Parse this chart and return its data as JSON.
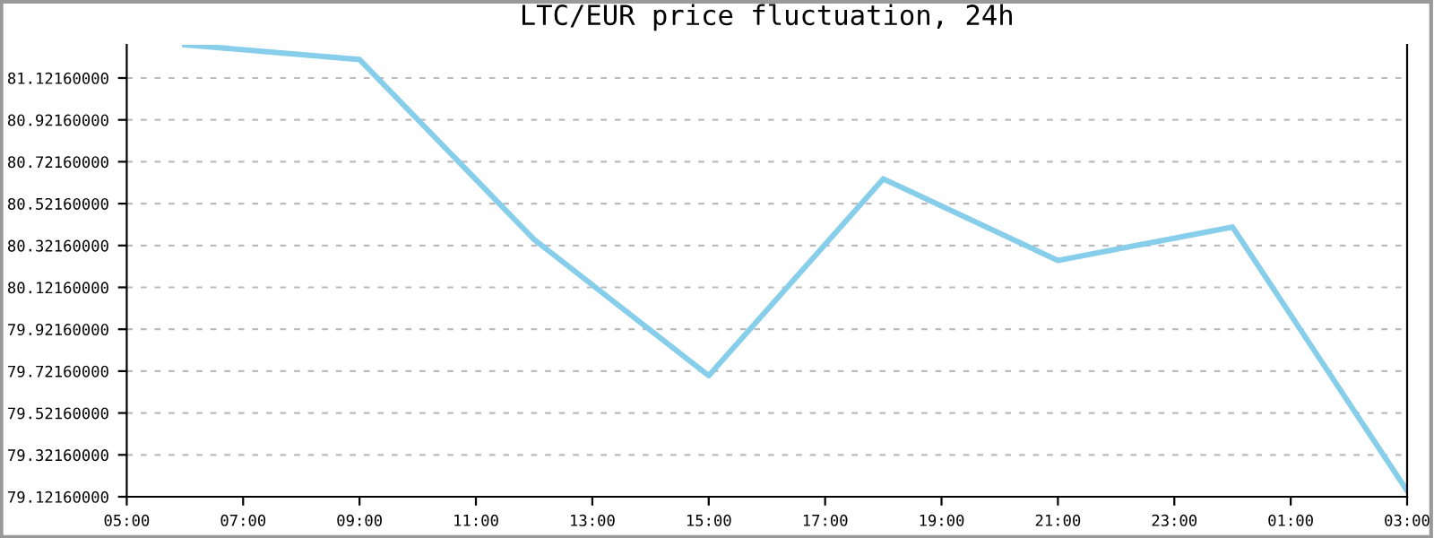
{
  "chart_data": {
    "type": "line",
    "title": "LTC/EUR price fluctuation, 24h",
    "x": [
      "2000-01-01T06:00",
      "2000-01-01T09:00",
      "2000-01-01T12:00",
      "2000-01-01T15:00",
      "2000-01-01T18:00",
      "2000-01-01T21:00",
      "2000-01-02T00:00",
      "2000-01-02T03:00"
    ],
    "series": [
      {
        "color": "#87ceeb",
        "values": [
          81.28,
          81.21,
          80.35,
          79.7,
          80.64,
          80.25,
          80.41,
          79.15
        ]
      }
    ],
    "xlim": [
      "2000-01-01T05:00",
      "2000-01-02T03:00"
    ],
    "xticks": [
      {
        "value": "2000-01-01T05:00",
        "label": "05:00"
      },
      {
        "value": "2000-01-01T07:00",
        "label": "07:00"
      },
      {
        "value": "2000-01-01T09:00",
        "label": "09:00"
      },
      {
        "value": "2000-01-01T11:00",
        "label": "11:00"
      },
      {
        "value": "2000-01-01T13:00",
        "label": "13:00"
      },
      {
        "value": "2000-01-01T15:00",
        "label": "15:00"
      },
      {
        "value": "2000-01-01T17:00",
        "label": "17:00"
      },
      {
        "value": "2000-01-01T19:00",
        "label": "19:00"
      },
      {
        "value": "2000-01-01T21:00",
        "label": "21:00"
      },
      {
        "value": "2000-01-01T23:00",
        "label": "23:00"
      },
      {
        "value": "2000-01-02T01:00",
        "label": "01:00"
      },
      {
        "value": "2000-01-02T03:00",
        "label": "03:00"
      }
    ],
    "ylim": [
      79.1216,
      81.28
    ],
    "yticks": [
      {
        "value": 79.1216,
        "label": "79.12160000"
      },
      {
        "value": 79.3216,
        "label": "79.32160000"
      },
      {
        "value": 79.5216,
        "label": "79.52160000"
      },
      {
        "value": 79.7216,
        "label": "79.72160000"
      },
      {
        "value": 79.9216,
        "label": "79.92160000"
      },
      {
        "value": 80.1216,
        "label": "80.12160000"
      },
      {
        "value": 80.3216,
        "label": "80.32160000"
      },
      {
        "value": 80.5216,
        "label": "80.52160000"
      },
      {
        "value": 80.7216,
        "label": "80.72160000"
      },
      {
        "value": 80.9216,
        "label": "80.92160000"
      },
      {
        "value": 81.1216,
        "label": "81.12160000"
      }
    ],
    "grid": "y",
    "marker": "none",
    "line_style": "solid"
  }
}
